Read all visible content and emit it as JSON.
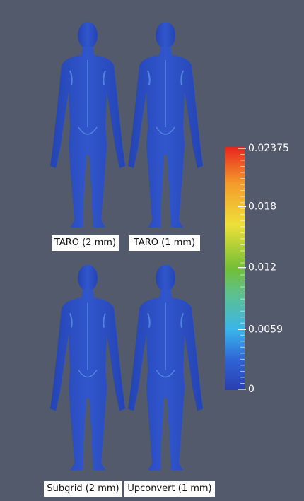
{
  "panels": [
    {
      "label": "TARO (2 mm)"
    },
    {
      "label": "TARO (1 mm)"
    },
    {
      "label": "Subgrid (2 mm)"
    },
    {
      "label": "Upconvert (1 mm)"
    }
  ],
  "colorbar": {
    "ticks": [
      0.02375,
      0.018,
      0.012,
      0.0059,
      0
    ]
  }
}
